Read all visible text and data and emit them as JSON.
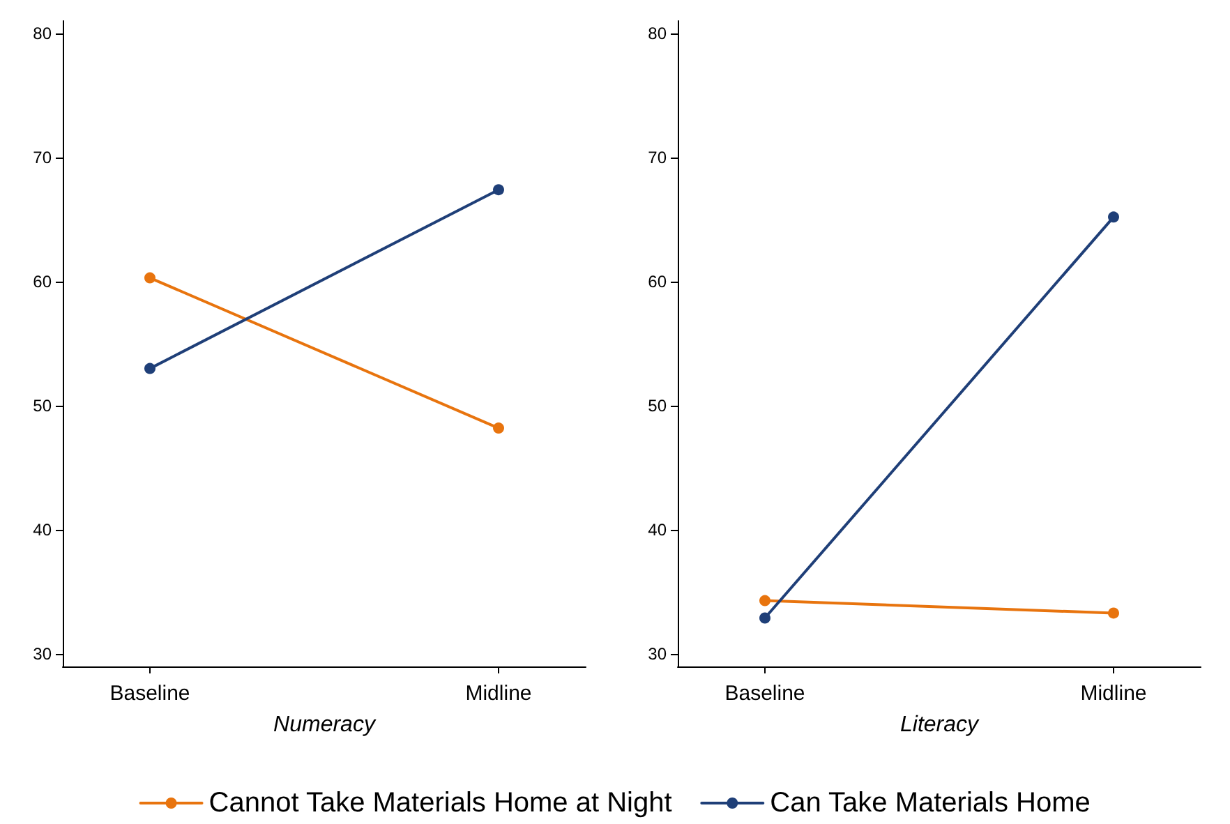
{
  "chart_data": [
    {
      "type": "line",
      "xlabel": "Numeracy",
      "categories": [
        "Baseline",
        "Midline"
      ],
      "series": [
        {
          "name": "Cannot Take Materials Home at Night",
          "color": "#e8740e",
          "values": [
            60.3,
            48.2
          ]
        },
        {
          "name": "Can Take Materials Home",
          "color": "#1f3f78",
          "values": [
            53.0,
            67.4
          ]
        }
      ],
      "ylim": [
        29,
        81
      ],
      "yticks": [
        30,
        40,
        50,
        60,
        70,
        80
      ],
      "grid": false,
      "legend": "bottom",
      "marker": "circle",
      "line_style": "solid"
    },
    {
      "type": "line",
      "xlabel": "Literacy",
      "categories": [
        "Baseline",
        "Midline"
      ],
      "series": [
        {
          "color": "#e8740e",
          "values": [
            34.3,
            33.3
          ]
        },
        {
          "color": "#1f3f78",
          "values": [
            32.9,
            65.2
          ]
        }
      ],
      "ylim": [
        29,
        81
      ],
      "yticks": [
        30,
        40,
        50,
        60,
        70,
        80
      ],
      "grid": false,
      "legend": false,
      "marker": "circle",
      "line_style": "solid"
    }
  ]
}
